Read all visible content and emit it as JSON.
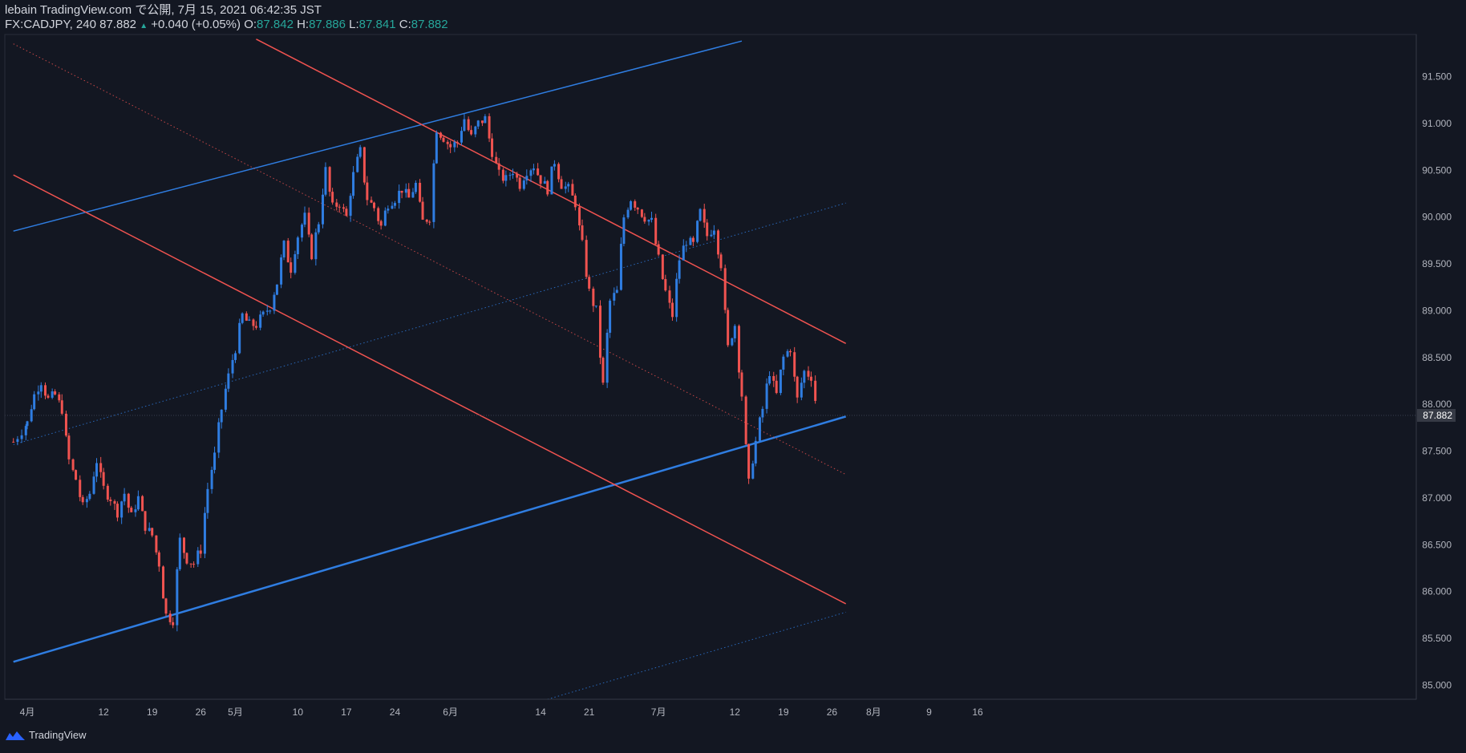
{
  "header": {
    "publisher": "lebain TradingView.com で公開, 7月 15, 2021 06:42:35 JST",
    "symbol": "FX:CADJPY, 240",
    "last": "87.882",
    "change": "+0.040 (+0.05%)",
    "o_label": "O:",
    "o_value": "87.842",
    "h_label": "H:",
    "h_value": "87.886",
    "l_label": "L:",
    "l_value": "87.841",
    "c_label": "C:",
    "c_value": "87.882"
  },
  "footer": {
    "brand": "TradingView"
  },
  "chart_data": {
    "type": "candlestick",
    "symbol": "FX:CADJPY",
    "interval": "240",
    "ylim": [
      84.85,
      91.95
    ],
    "y_ticks": [
      "91.500",
      "91.000",
      "90.500",
      "90.000",
      "89.500",
      "89.000",
      "88.500",
      "88.000",
      "87.500",
      "87.000",
      "86.500",
      "86.000",
      "85.500",
      "85.000"
    ],
    "x_ticks": [
      {
        "label": "4月",
        "day": 0
      },
      {
        "label": "12",
        "day": 11
      },
      {
        "label": "19",
        "day": 18
      },
      {
        "label": "26",
        "day": 25
      },
      {
        "label": "5月",
        "day": 30
      },
      {
        "label": "10",
        "day": 39
      },
      {
        "label": "17",
        "day": 46
      },
      {
        "label": "24",
        "day": 53
      },
      {
        "label": "6月",
        "day": 61
      },
      {
        "label": "14",
        "day": 74
      },
      {
        "label": "21",
        "day": 81
      },
      {
        "label": "7月",
        "day": 91
      },
      {
        "label": "12",
        "day": 102
      },
      {
        "label": "19",
        "day": 109
      },
      {
        "label": "26",
        "day": 116
      },
      {
        "label": "8月",
        "day": 122
      },
      {
        "label": "9",
        "day": 130
      },
      {
        "label": "16",
        "day": 137
      }
    ],
    "current_price": "87.882",
    "path_points": [
      [
        -2,
        87.6
      ],
      [
        0,
        87.8
      ],
      [
        1,
        88.1
      ],
      [
        2,
        88.25
      ],
      [
        3,
        88.05
      ],
      [
        4,
        88.1
      ],
      [
        5,
        87.95
      ],
      [
        6,
        87.4
      ],
      [
        7,
        87.2
      ],
      [
        8,
        86.9
      ],
      [
        9,
        87.05
      ],
      [
        10,
        87.4
      ],
      [
        11,
        87.1
      ],
      [
        12,
        87.0
      ],
      [
        13,
        86.85
      ],
      [
        14,
        87.05
      ],
      [
        15,
        86.8
      ],
      [
        16,
        87.0
      ],
      [
        17,
        86.7
      ],
      [
        18,
        86.6
      ],
      [
        19,
        86.3
      ],
      [
        20,
        85.75
      ],
      [
        21,
        85.7
      ],
      [
        22,
        86.55
      ],
      [
        23,
        86.35
      ],
      [
        24,
        86.3
      ],
      [
        25,
        86.45
      ],
      [
        26,
        87.1
      ],
      [
        27,
        87.45
      ],
      [
        28,
        87.95
      ],
      [
        29,
        88.3
      ],
      [
        30,
        88.6
      ],
      [
        31,
        88.95
      ],
      [
        32,
        88.85
      ],
      [
        33,
        88.85
      ],
      [
        34,
        88.95
      ],
      [
        35,
        89.05
      ],
      [
        36,
        89.3
      ],
      [
        37,
        89.7
      ],
      [
        38,
        89.45
      ],
      [
        39,
        89.8
      ],
      [
        40,
        90.0
      ],
      [
        41,
        89.6
      ],
      [
        42,
        89.95
      ],
      [
        43,
        90.5
      ],
      [
        44,
        90.1
      ],
      [
        45,
        90.15
      ],
      [
        46,
        90.0
      ],
      [
        47,
        90.45
      ],
      [
        48,
        90.7
      ],
      [
        49,
        90.2
      ],
      [
        50,
        90.1
      ],
      [
        51,
        89.9
      ],
      [
        52,
        90.15
      ],
      [
        53,
        90.2
      ],
      [
        54,
        90.3
      ],
      [
        55,
        90.2
      ],
      [
        56,
        90.35
      ],
      [
        57,
        89.95
      ],
      [
        58,
        90.0
      ],
      [
        59,
        90.95
      ],
      [
        60,
        90.85
      ],
      [
        61,
        90.75
      ],
      [
        62,
        90.8
      ],
      [
        63,
        91.05
      ],
      [
        64,
        90.85
      ],
      [
        65,
        91.0
      ],
      [
        66,
        91.05
      ],
      [
        67,
        90.7
      ],
      [
        68,
        90.45
      ],
      [
        69,
        90.4
      ],
      [
        70,
        90.5
      ],
      [
        71,
        90.35
      ],
      [
        72,
        90.5
      ],
      [
        73,
        90.55
      ],
      [
        74,
        90.4
      ],
      [
        75,
        90.3
      ],
      [
        76,
        90.6
      ],
      [
        77,
        90.35
      ],
      [
        78,
        90.3
      ],
      [
        79,
        90.15
      ],
      [
        80,
        89.7
      ],
      [
        81,
        89.2
      ],
      [
        82,
        89.0
      ],
      [
        83,
        88.2
      ],
      [
        84,
        89.1
      ],
      [
        85,
        89.2
      ],
      [
        86,
        90.0
      ],
      [
        87,
        90.2
      ],
      [
        88,
        90.1
      ],
      [
        89,
        90.0
      ],
      [
        90,
        89.95
      ],
      [
        91,
        89.55
      ],
      [
        92,
        89.2
      ],
      [
        93,
        88.95
      ],
      [
        94,
        89.55
      ],
      [
        95,
        89.75
      ],
      [
        96,
        89.7
      ],
      [
        97,
        90.05
      ],
      [
        98,
        89.8
      ],
      [
        99,
        89.9
      ],
      [
        100,
        89.5
      ],
      [
        101,
        88.6
      ],
      [
        102,
        88.85
      ],
      [
        103,
        88.1
      ],
      [
        104,
        87.15
      ],
      [
        105,
        87.6
      ],
      [
        106,
        87.95
      ],
      [
        107,
        88.35
      ],
      [
        108,
        88.1
      ],
      [
        109,
        88.5
      ],
      [
        110,
        88.6
      ],
      [
        111,
        88.05
      ],
      [
        112,
        88.35
      ],
      [
        113,
        88.3
      ],
      [
        114,
        87.88
      ]
    ],
    "trend_lines": [
      {
        "color": "#2962ff",
        "style": "solid",
        "width": 1.5,
        "points": [
          [
            -2,
            89.85
          ],
          [
            103,
            91.88
          ]
        ]
      },
      {
        "color": "#2962ff",
        "style": "solid",
        "width": 2.5,
        "points": [
          [
            -2,
            85.25
          ],
          [
            118,
            87.87
          ]
        ]
      },
      {
        "color": "#2962ff",
        "style": "dotted",
        "width": 1,
        "points": [
          [
            -2,
            87.57
          ],
          [
            118,
            90.15
          ]
        ]
      },
      {
        "color": "#2962ff",
        "style": "dotted",
        "width": 1,
        "points": [
          [
            75,
            84.85
          ],
          [
            118,
            85.78
          ]
        ]
      },
      {
        "color": "#f23645",
        "style": "solid",
        "width": 1.5,
        "points": [
          [
            33,
            91.9
          ],
          [
            118,
            88.65
          ]
        ]
      },
      {
        "color": "#f23645",
        "style": "solid",
        "width": 1.5,
        "points": [
          [
            -2,
            90.45
          ],
          [
            118,
            85.87
          ]
        ]
      },
      {
        "color": "#f23645",
        "style": "dotted",
        "width": 1,
        "points": [
          [
            -2,
            91.85
          ],
          [
            118,
            87.25
          ]
        ]
      }
    ]
  }
}
